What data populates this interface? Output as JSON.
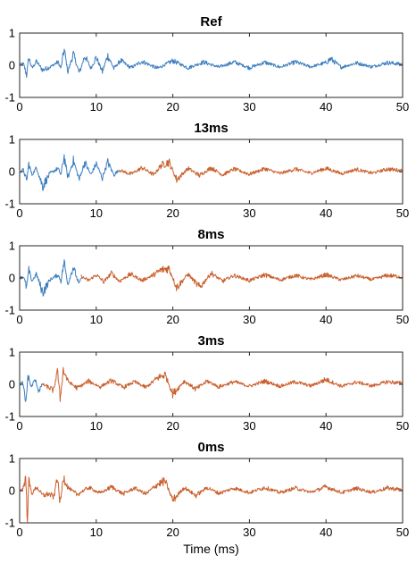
{
  "chart_data": [
    {
      "type": "line",
      "title": "Ref",
      "xlabel": "",
      "ylabel": "",
      "xlim": [
        0,
        50
      ],
      "ylim": [
        -1,
        1
      ],
      "xticks": [
        0,
        10,
        20,
        30,
        40,
        50
      ],
      "yticks": [
        -1,
        0,
        1
      ],
      "series": [
        {
          "color": "#3d7ebf",
          "x_range": [
            0,
            50
          ],
          "x": [
            0,
            0.5,
            0.9,
            1.2,
            1.6,
            2.2,
            3,
            4,
            5,
            5.4,
            5.8,
            6.3,
            7,
            7.8,
            8.5,
            9.3,
            10,
            10.8,
            11.5,
            12.3,
            13.2,
            14.5,
            16,
            18,
            20,
            22,
            24,
            26,
            28,
            30,
            32,
            34,
            36,
            38,
            40,
            40.6,
            42,
            44,
            46,
            48,
            50
          ],
          "y": [
            0,
            0.05,
            -0.3,
            0.25,
            -0.1,
            0.12,
            -0.15,
            -0.05,
            0.1,
            -0.1,
            0.5,
            -0.2,
            0.35,
            -0.25,
            0.3,
            -0.1,
            0.25,
            -0.2,
            0.3,
            -0.1,
            0.15,
            -0.08,
            0.12,
            -0.1,
            0.14,
            -0.08,
            0.1,
            -0.06,
            0.1,
            -0.08,
            0.09,
            -0.06,
            0.1,
            -0.05,
            0.08,
            0.2,
            -0.06,
            0.07,
            -0.05,
            0.08,
            0.03
          ]
        }
      ]
    },
    {
      "type": "line",
      "title": "13ms",
      "xlabel": "",
      "ylabel": "",
      "xlim": [
        0,
        50
      ],
      "ylim": [
        -1,
        1
      ],
      "xticks": [
        0,
        10,
        20,
        30,
        40,
        50
      ],
      "yticks": [
        -1,
        0,
        1
      ],
      "series": [
        {
          "color": "#3d7ebf",
          "x_range": [
            0,
            13
          ],
          "x": [
            0,
            0.5,
            0.9,
            1.2,
            1.6,
            2.2,
            3,
            4,
            5,
            5.4,
            5.8,
            6.3,
            7,
            7.8,
            8.5,
            9.3,
            10,
            10.8,
            11.5,
            12.3,
            13
          ],
          "y": [
            0,
            0.05,
            -0.3,
            0.25,
            -0.1,
            0.12,
            -0.45,
            -0.05,
            0.1,
            -0.1,
            0.5,
            -0.2,
            0.35,
            -0.25,
            0.3,
            -0.1,
            0.25,
            -0.2,
            0.3,
            -0.1,
            0.05
          ]
        },
        {
          "color": "#c9602e",
          "x_range": [
            13,
            50
          ],
          "x": [
            13,
            14.5,
            16,
            17.5,
            18.5,
            19.5,
            20.5,
            22,
            23.5,
            25,
            26.5,
            28,
            30,
            32,
            34,
            36,
            38,
            40,
            42,
            44,
            46,
            48,
            50
          ],
          "y": [
            0.05,
            -0.08,
            0.12,
            -0.1,
            0.2,
            0.3,
            -0.25,
            0.1,
            -0.12,
            0.12,
            -0.1,
            0.08,
            -0.08,
            0.09,
            -0.06,
            0.08,
            -0.05,
            0.1,
            -0.06,
            0.07,
            -0.05,
            0.08,
            0.03
          ]
        }
      ]
    },
    {
      "type": "line",
      "title": "8ms",
      "xlabel": "",
      "ylabel": "",
      "xlim": [
        0,
        50
      ],
      "ylim": [
        -1,
        1
      ],
      "xticks": [
        0,
        10,
        20,
        30,
        40,
        50
      ],
      "yticks": [
        -1,
        0,
        1
      ],
      "series": [
        {
          "color": "#3d7ebf",
          "x_range": [
            0,
            8
          ],
          "x": [
            0,
            0.5,
            0.9,
            1.2,
            1.6,
            2.2,
            3,
            4,
            5,
            5.4,
            5.8,
            6.3,
            7,
            7.8,
            8
          ],
          "y": [
            0,
            0.05,
            -0.3,
            0.25,
            -0.1,
            0.12,
            -0.45,
            -0.05,
            0.1,
            -0.1,
            0.5,
            -0.2,
            0.35,
            -0.25,
            0.05
          ]
        },
        {
          "color": "#c9602e",
          "x_range": [
            8,
            50
          ],
          "x": [
            8,
            9,
            10,
            11,
            12,
            13,
            14.5,
            16,
            17.5,
            18.5,
            19.5,
            20.5,
            22,
            23.5,
            25,
            26.5,
            28,
            30,
            32,
            34,
            36,
            38,
            40,
            42,
            44,
            46,
            48,
            50
          ],
          "y": [
            0.05,
            -0.08,
            0.1,
            -0.12,
            0.15,
            -0.1,
            0.12,
            -0.08,
            0.1,
            0.25,
            0.3,
            -0.3,
            0.12,
            -0.3,
            0.15,
            -0.1,
            0.08,
            -0.08,
            0.1,
            -0.06,
            0.08,
            -0.05,
            0.1,
            -0.06,
            0.07,
            -0.05,
            0.08,
            0.03
          ]
        }
      ]
    },
    {
      "type": "line",
      "title": "3ms",
      "xlabel": "",
      "ylabel": "",
      "xlim": [
        0,
        50
      ],
      "ylim": [
        -1,
        1
      ],
      "xticks": [
        0,
        10,
        20,
        30,
        40,
        50
      ],
      "yticks": [
        -1,
        0,
        1
      ],
      "series": [
        {
          "color": "#3d7ebf",
          "x_range": [
            0,
            3
          ],
          "x": [
            0,
            0.4,
            0.8,
            1.1,
            1.5,
            2,
            2.5,
            3
          ],
          "y": [
            0,
            0.05,
            -0.6,
            0.3,
            -0.1,
            0.15,
            -0.2,
            0.0
          ]
        },
        {
          "color": "#c9602e",
          "x_range": [
            3,
            50
          ],
          "x": [
            3,
            3.8,
            4.5,
            4.9,
            5.3,
            5.7,
            6.3,
            7.5,
            9,
            10.5,
            12,
            13.5,
            15,
            16.5,
            18,
            19,
            20,
            21.5,
            23,
            24.5,
            26,
            28,
            30,
            32,
            34,
            36,
            38,
            40,
            42,
            44,
            46,
            48,
            50
          ],
          "y": [
            0.0,
            -0.1,
            -0.2,
            0.5,
            -0.45,
            0.45,
            0.1,
            -0.12,
            0.1,
            -0.08,
            0.12,
            -0.1,
            0.08,
            -0.1,
            0.2,
            0.3,
            -0.3,
            0.1,
            -0.15,
            0.1,
            -0.08,
            0.08,
            -0.06,
            0.1,
            -0.06,
            0.08,
            -0.05,
            0.15,
            -0.06,
            0.07,
            -0.05,
            0.08,
            0.03
          ]
        }
      ]
    },
    {
      "type": "line",
      "title": "0ms",
      "xlabel": "Time (ms)",
      "ylabel": "",
      "xlim": [
        0,
        50
      ],
      "ylim": [
        -1,
        1
      ],
      "xticks": [
        0,
        10,
        20,
        30,
        40,
        50
      ],
      "yticks": [
        -1,
        0,
        1
      ],
      "series": [
        {
          "color": "#c9602e",
          "x_range": [
            0,
            50
          ],
          "x": [
            0,
            0.4,
            0.8,
            1.0,
            1.2,
            1.6,
            2.2,
            3,
            3.8,
            4.5,
            4.9,
            5.3,
            5.7,
            6.3,
            7.5,
            9,
            10.5,
            12,
            13.5,
            15,
            16.5,
            18,
            19,
            20,
            21.5,
            23,
            24.5,
            26,
            28,
            30,
            32,
            34,
            36,
            38,
            40,
            42,
            44,
            46,
            48,
            50
          ],
          "y": [
            0,
            0.05,
            0.4,
            -0.85,
            0.3,
            -0.1,
            0.12,
            -0.15,
            -0.1,
            -0.2,
            0.5,
            -0.45,
            0.45,
            0.1,
            -0.12,
            0.1,
            -0.08,
            0.12,
            -0.1,
            0.08,
            -0.1,
            0.2,
            0.3,
            -0.3,
            0.1,
            -0.15,
            0.1,
            -0.08,
            0.08,
            -0.06,
            0.1,
            -0.06,
            0.08,
            -0.05,
            0.12,
            -0.06,
            0.07,
            -0.05,
            0.08,
            0.03
          ]
        }
      ]
    }
  ]
}
